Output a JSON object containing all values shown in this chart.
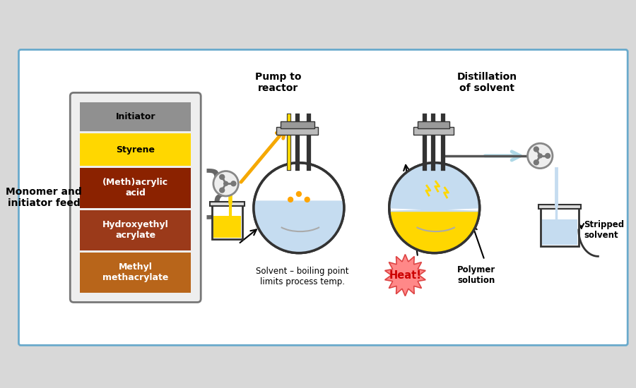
{
  "bg_color": "#ffffff",
  "border_color": "#6aaacc",
  "outer_bg": "#d8d8d8",
  "components": {
    "initiator": {
      "label": "Initiator",
      "color": "#909090",
      "text_color": "#000000"
    },
    "styrene": {
      "label": "Styrene",
      "color": "#FFD700",
      "text_color": "#000000"
    },
    "methacrylic": {
      "label": "(Meth)acrylic\nacid",
      "color": "#8B2200",
      "text_color": "#ffffff"
    },
    "hydroxyethyl": {
      "label": "Hydroxyethyl\nacrylate",
      "color": "#9B3A1A",
      "text_color": "#ffffff"
    },
    "methyl": {
      "label": "Methyl\nmethacrylate",
      "color": "#B8651A",
      "text_color": "#ffffff"
    }
  },
  "monomer_label": "Monomer and\ninitiator feed",
  "pump_to_reactor": "Pump to\nreactor",
  "distillation_label": "Distillation\nof solvent",
  "solvent_label": "Solvent – boiling point\nlimits process temp.",
  "heat_label": "Heat!",
  "polymer_label": "Polymer\nsolution",
  "stripped_label": "Stripped\nsolvent",
  "arrow_orange": "#F5A800",
  "arrow_blue": "#ADD8E6",
  "heat_color": "#FF8888",
  "flask_liquid_blue": "#C5DCF0",
  "flask_liquid_yellow": "#FFD700",
  "pump_color": "#888888"
}
